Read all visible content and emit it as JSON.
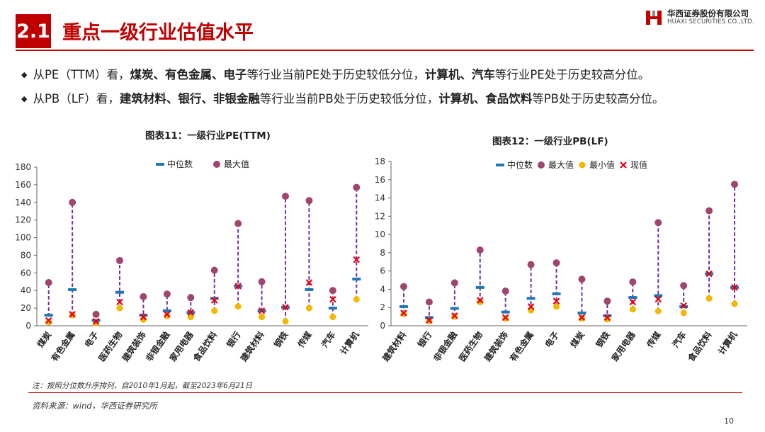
{
  "header": {
    "section_number": "2.1",
    "section_title": "重点一级行业估值水平",
    "logo_cn": "华西证券股份有限公司",
    "logo_en": "HUAXI SECURITIES CO.,LTD."
  },
  "bullets": [
    {
      "parts": [
        {
          "text": "从PE（TTM）看，",
          "bold": false
        },
        {
          "text": "煤炭、有色金属、电子",
          "bold": true
        },
        {
          "text": "等行业当前PE处于历史较低分位，",
          "bold": false
        },
        {
          "text": "计算机、汽车",
          "bold": true
        },
        {
          "text": "等行业PE处于历史较高分位。",
          "bold": false
        }
      ]
    },
    {
      "parts": [
        {
          "text": "从PB（LF）看，",
          "bold": false
        },
        {
          "text": "建筑材料、银行、非银金融",
          "bold": true
        },
        {
          "text": "等行业当前PB处于历史较低分位，",
          "bold": false
        },
        {
          "text": "计算机、食品饮料",
          "bold": true
        },
        {
          "text": "等PB处于历史较高分位。",
          "bold": false
        }
      ]
    }
  ],
  "colors": {
    "accent": "#c00000",
    "median": "#1f77b4",
    "max": "#a0466e",
    "min": "#f5b800",
    "current": "#e60012",
    "range_line": "#7030a0"
  },
  "chart_data": [
    {
      "type": "scatter",
      "title": "图表11：一级行业PE(TTM)",
      "ylim": [
        0,
        180
      ],
      "yticks": [
        0,
        20,
        40,
        60,
        80,
        100,
        120,
        140,
        160,
        180
      ],
      "legend": [
        "中位数",
        "最大值"
      ],
      "legend_position": "top",
      "categories": [
        "煤炭",
        "有色金属",
        "电子",
        "医药生物",
        "建筑装饰",
        "非银金融",
        "家用电器",
        "食品饮料",
        "银行",
        "建筑材料",
        "钢铁",
        "传媒",
        "汽车",
        "计算机"
      ],
      "series": [
        {
          "name": "中位数",
          "marker": "dash",
          "values": [
            12,
            41,
            6,
            38,
            12,
            17,
            15,
            31,
            45,
            17,
            21,
            41,
            20,
            53
          ]
        },
        {
          "name": "最大值",
          "marker": "circle",
          "values": [
            49,
            140,
            13,
            74,
            33,
            36,
            32,
            63,
            116,
            50,
            147,
            142,
            40,
            157
          ]
        },
        {
          "name": "最小值",
          "marker": "dot",
          "values": [
            4,
            12,
            3,
            20,
            7,
            11,
            10,
            17,
            22,
            10,
            5,
            20,
            10,
            30
          ]
        },
        {
          "name": "现值",
          "marker": "x",
          "values": [
            6,
            13,
            5,
            27,
            10,
            13,
            15,
            29,
            45,
            17,
            21,
            49,
            30,
            75
          ]
        }
      ]
    },
    {
      "type": "scatter",
      "title": "图表12：一级行业PB(LF)",
      "ylim": [
        0,
        18
      ],
      "yticks": [
        0,
        2,
        4,
        6,
        8,
        10,
        12,
        14,
        16,
        18
      ],
      "legend": [
        "中位数",
        "最大值",
        "最小值",
        "现值"
      ],
      "legend_position": "top",
      "categories": [
        "建筑材料",
        "银行",
        "非银金融",
        "医药生物",
        "建筑装饰",
        "有色金属",
        "电子",
        "煤炭",
        "钢铁",
        "家用电器",
        "传媒",
        "汽车",
        "食品饮料",
        "计算机"
      ],
      "series": [
        {
          "name": "中位数",
          "marker": "dash",
          "values": [
            2.1,
            0.9,
            1.9,
            4.2,
            1.5,
            3.0,
            3.5,
            1.4,
            1.1,
            3.1,
            3.3,
            2.1,
            5.7,
            4.2
          ]
        },
        {
          "name": "最大值",
          "marker": "circle",
          "values": [
            4.3,
            2.6,
            4.7,
            8.3,
            3.8,
            6.7,
            6.9,
            5.1,
            2.7,
            4.8,
            11.3,
            4.4,
            12.6,
            15.5
          ]
        },
        {
          "name": "最小值",
          "marker": "dot",
          "values": [
            1.3,
            0.5,
            1.0,
            2.6,
            0.8,
            1.7,
            2.1,
            0.8,
            0.7,
            1.8,
            1.6,
            1.4,
            3.0,
            2.4
          ]
        },
        {
          "name": "现值",
          "marker": "x",
          "values": [
            1.4,
            0.6,
            1.1,
            2.8,
            0.9,
            2.1,
            2.7,
            0.9,
            0.9,
            2.6,
            2.9,
            2.2,
            5.7,
            4.2
          ]
        }
      ]
    }
  ],
  "footer": {
    "note": "注：按照分位数升序排列，自2010年1月起，截至2023年6月21日",
    "source": "资料来源：wind，华西证券研究所",
    "page": "10"
  }
}
